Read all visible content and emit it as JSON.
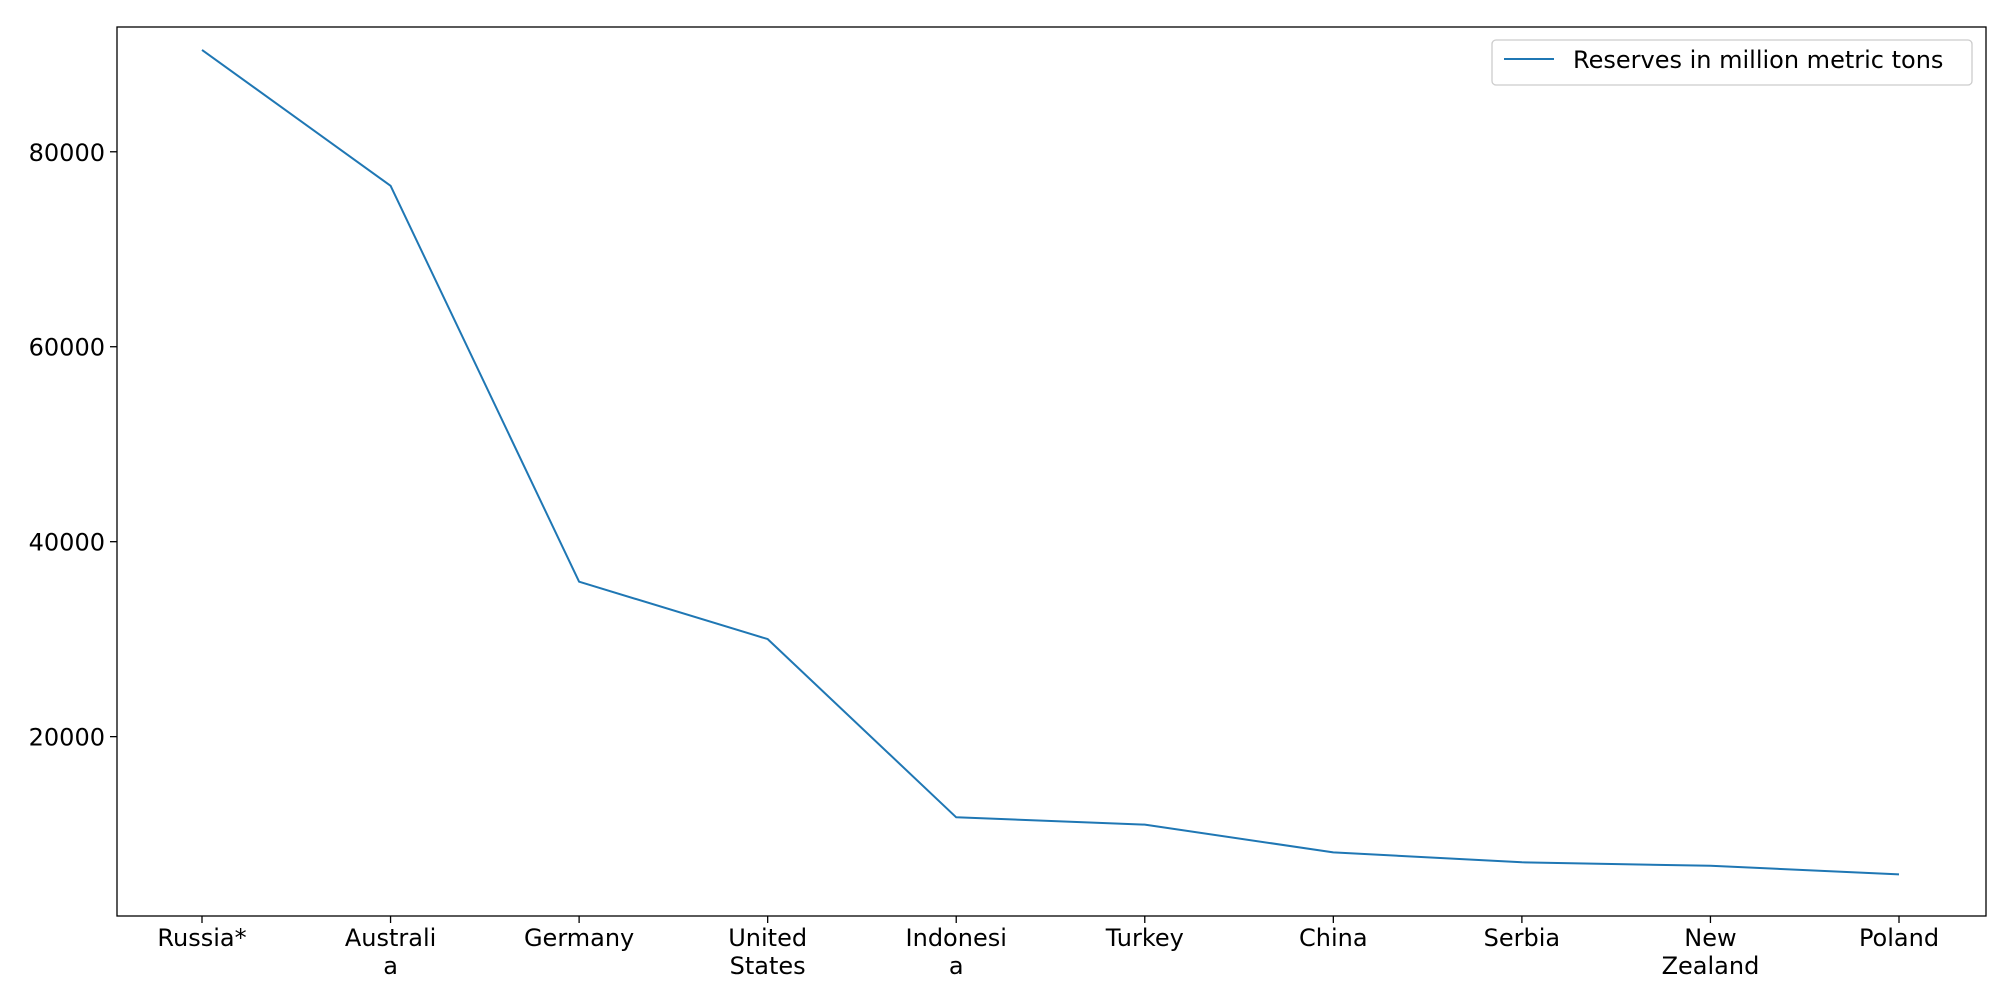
{
  "chart_data": {
    "type": "line",
    "title": "",
    "xlabel": "",
    "ylabel": "",
    "categories": [
      [
        "Russia*"
      ],
      [
        "Australi",
        "a"
      ],
      [
        "Germany"
      ],
      [
        "United",
        "States"
      ],
      [
        "Indonesi",
        "a"
      ],
      [
        "Turkey"
      ],
      [
        "China"
      ],
      [
        "Serbia"
      ],
      [
        "New",
        "Zealand"
      ],
      [
        "Poland"
      ]
    ],
    "series": [
      {
        "name": "Reserves in million metric tons",
        "color": "#1f77b4",
        "values": [
          90447,
          76508,
          35900,
          30003,
          11728,
          10975,
          8128,
          7112,
          6750,
          5865
        ]
      }
    ],
    "ylim": [
      1600,
      92800
    ],
    "yticks": [
      20000,
      40000,
      60000,
      80000
    ],
    "grid": false,
    "legend_position": "top-right"
  }
}
